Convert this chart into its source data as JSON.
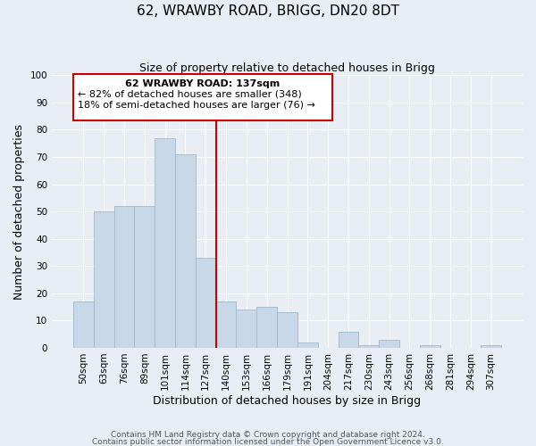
{
  "title": "62, WRAWBY ROAD, BRIGG, DN20 8DT",
  "subtitle": "Size of property relative to detached houses in Brigg",
  "xlabel": "Distribution of detached houses by size in Brigg",
  "ylabel": "Number of detached properties",
  "bar_labels": [
    "50sqm",
    "63sqm",
    "76sqm",
    "89sqm",
    "101sqm",
    "114sqm",
    "127sqm",
    "140sqm",
    "153sqm",
    "166sqm",
    "179sqm",
    "191sqm",
    "204sqm",
    "217sqm",
    "230sqm",
    "243sqm",
    "256sqm",
    "268sqm",
    "281sqm",
    "294sqm",
    "307sqm"
  ],
  "bar_values": [
    17,
    50,
    52,
    52,
    77,
    71,
    33,
    17,
    14,
    15,
    13,
    2,
    0,
    6,
    1,
    3,
    0,
    1,
    0,
    0,
    1
  ],
  "bar_color": "#c8d8e8",
  "bar_edge_color": "#a0b8cc",
  "vline_x_index": 7,
  "vline_color": "#cc0000",
  "annotation_line1": "62 WRAWBY ROAD: 137sqm",
  "annotation_line2": "← 82% of detached houses are smaller (348)",
  "annotation_line3": "18% of semi-detached houses are larger (76) →",
  "annotation_box_color": "#ffffff",
  "annotation_box_edge": "#cc0000",
  "footer_line1": "Contains HM Land Registry data © Crown copyright and database right 2024.",
  "footer_line2": "Contains public sector information licensed under the Open Government Licence v3.0.",
  "background_color": "#e8eef4",
  "plot_bg_color": "#e8eef4",
  "ylim": [
    0,
    100
  ],
  "title_fontsize": 11,
  "subtitle_fontsize": 9,
  "axis_label_fontsize": 9,
  "tick_fontsize": 7.5,
  "footer_fontsize": 6.5,
  "annotation_fontsize": 8
}
